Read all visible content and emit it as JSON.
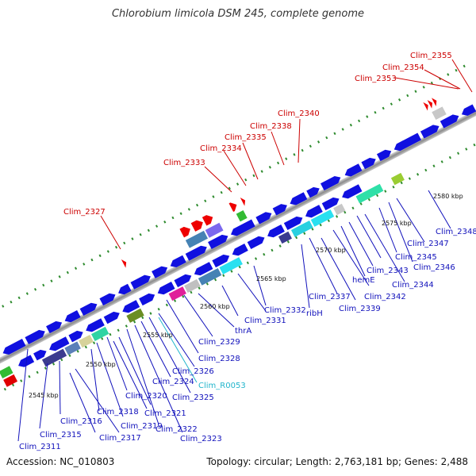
{
  "title": "Chlorobium limicola DSM 245, complete genome",
  "accession": "Accession: NC_010803",
  "summary": "Topology: circular; Length: 2,763,181 bp; Genes: 2,488",
  "colors": {
    "cds": "#1010e0",
    "blast_red": "#ee0000",
    "blast_green": "#33bb33",
    "label_blue": "#1010bb",
    "label_red": "#cc0000",
    "label_cyan": "#22b5cc",
    "backbone": "#9a9a9a",
    "tick": "#2e8b2e"
  },
  "scale_labels": [
    "2545 kbp",
    "2550 kbp",
    "2555 kbp",
    "2560 kbp",
    "2565 kbp",
    "2570 kbp",
    "2575 kbp",
    "2580 kbp"
  ],
  "labels": {
    "top": [
      "Clim_2327",
      "Clim_2333",
      "Clim_2334",
      "Clim_2335",
      "Clim_2338",
      "Clim_2340",
      "Clim_2353",
      "Clim_2354",
      "Clim_2355"
    ],
    "bottom": [
      "Clim_2311",
      "Clim_2315",
      "Clim_2316",
      "Clim_2317",
      "Clim_2318",
      "Clim_2319",
      "Clim_2320",
      "Clim_2321",
      "Clim_2322",
      "Clim_2323",
      "Clim_2324",
      "Clim_2325",
      "Clim_R0053",
      "Clim_2326",
      "Clim_2328",
      "Clim_2329",
      "thrA",
      "Clim_2331",
      "Clim_2332",
      "ribH",
      "Clim_2337",
      "Clim_2339",
      "Clim_2342",
      "hemE",
      "Clim_2343",
      "Clim_2344",
      "Clim_2345",
      "Clim_2346",
      "Clim_2347",
      "Clim_2348"
    ]
  }
}
